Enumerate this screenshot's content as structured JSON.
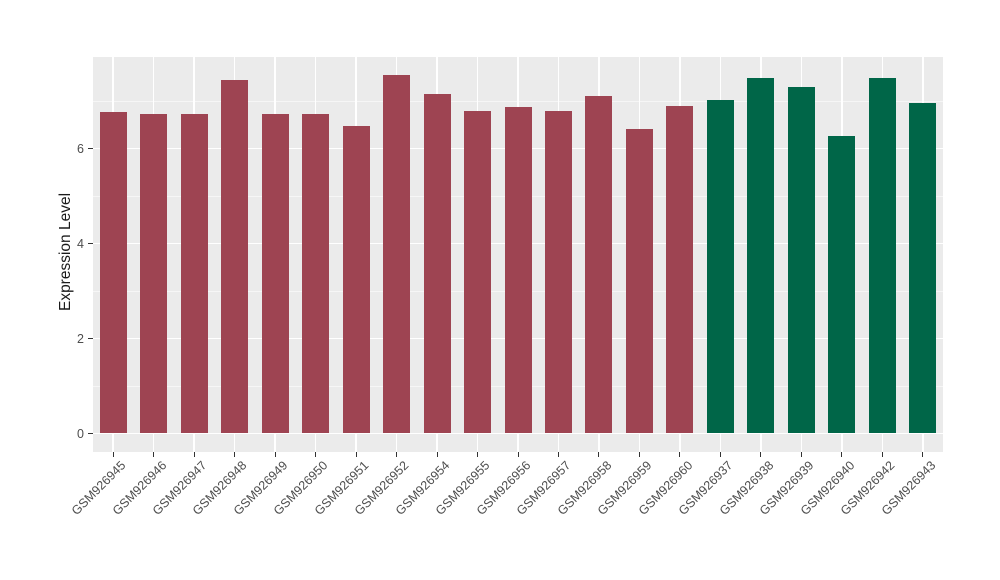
{
  "figure": {
    "background": "#FFFFFF",
    "panel_background": "#EBEBEB",
    "gridline_color": "#FFFFFF",
    "axis_text_color": "#4D4D4D",
    "axis_title_color": "#1A1A1A",
    "tick_color": "#333333"
  },
  "chart_data": {
    "type": "bar",
    "title": "",
    "xlabel": "",
    "ylabel": "Expression Level",
    "ylim": [
      -0.4,
      7.92
    ],
    "yticks": [
      0,
      2,
      4,
      6
    ],
    "minor_gridlines": [
      1,
      3,
      5,
      7
    ],
    "grid": true,
    "legend_position": "none",
    "group_colors": [
      "#9E4452",
      "#006648"
    ],
    "categories": [
      "GSM926945",
      "GSM926946",
      "GSM926947",
      "GSM926948",
      "GSM926949",
      "GSM926950",
      "GSM926951",
      "GSM926952",
      "GSM926954",
      "GSM926955",
      "GSM926956",
      "GSM926957",
      "GSM926958",
      "GSM926959",
      "GSM926960",
      "GSM926937",
      "GSM926938",
      "GSM926939",
      "GSM926940",
      "GSM926942",
      "GSM926943"
    ],
    "values": [
      6.75,
      6.72,
      6.72,
      7.43,
      6.72,
      6.72,
      6.47,
      7.54,
      7.14,
      6.77,
      6.86,
      6.77,
      7.1,
      6.4,
      6.89,
      7.01,
      7.47,
      7.28,
      6.25,
      7.47,
      6.95
    ],
    "bar_groups": [
      0,
      0,
      0,
      0,
      0,
      0,
      0,
      0,
      0,
      0,
      0,
      0,
      0,
      0,
      0,
      1,
      1,
      1,
      1,
      1,
      1
    ]
  }
}
